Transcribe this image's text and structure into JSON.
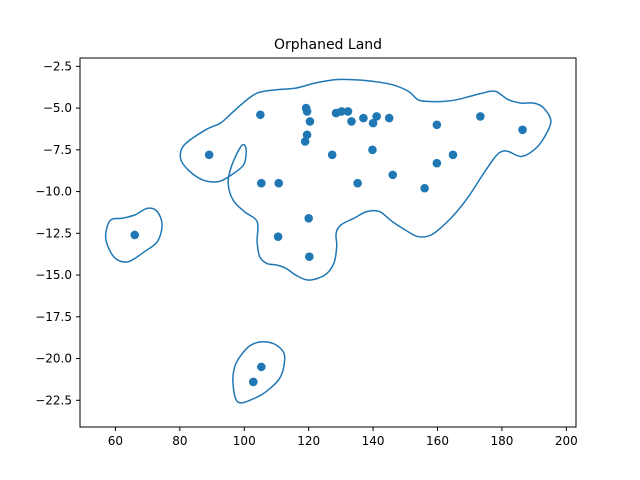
{
  "chart_data": {
    "type": "scatter",
    "title": "Orphaned Land",
    "xlabel": "",
    "ylabel": "",
    "xlim": [
      49,
      203
    ],
    "ylim": [
      -24.1,
      -2.0
    ],
    "x_ticks": [
      60,
      80,
      100,
      120,
      140,
      160,
      180,
      200
    ],
    "y_ticks": [
      -2.5,
      -5.0,
      -7.5,
      -10.0,
      -12.5,
      -15.0,
      -17.5,
      -20.0,
      -22.5
    ],
    "grid": false,
    "legend": "none",
    "colors": {
      "points": "#1f77b4",
      "contours": "#1f77b4"
    },
    "points": [
      {
        "x": 66.0,
        "y": -12.6
      },
      {
        "x": 89.1,
        "y": -7.8
      },
      {
        "x": 105.0,
        "y": -5.4
      },
      {
        "x": 105.3,
        "y": -9.5
      },
      {
        "x": 110.7,
        "y": -9.5
      },
      {
        "x": 110.5,
        "y": -12.7
      },
      {
        "x": 119.2,
        "y": -5.0
      },
      {
        "x": 119.5,
        "y": -5.2
      },
      {
        "x": 120.4,
        "y": -5.8
      },
      {
        "x": 119.5,
        "y": -6.6
      },
      {
        "x": 118.9,
        "y": -7.0
      },
      {
        "x": 120.0,
        "y": -11.6
      },
      {
        "x": 120.2,
        "y": -13.9
      },
      {
        "x": 127.3,
        "y": -7.8
      },
      {
        "x": 128.5,
        "y": -5.3
      },
      {
        "x": 130.2,
        "y": -5.2
      },
      {
        "x": 132.2,
        "y": -5.2
      },
      {
        "x": 133.3,
        "y": -5.8
      },
      {
        "x": 135.2,
        "y": -9.5
      },
      {
        "x": 137.0,
        "y": -5.6
      },
      {
        "x": 139.8,
        "y": -7.5
      },
      {
        "x": 140.0,
        "y": -5.9
      },
      {
        "x": 141.1,
        "y": -5.5
      },
      {
        "x": 145.0,
        "y": -5.6
      },
      {
        "x": 146.1,
        "y": -9.0
      },
      {
        "x": 156.0,
        "y": -9.8
      },
      {
        "x": 159.8,
        "y": -6.0
      },
      {
        "x": 159.8,
        "y": -8.3
      },
      {
        "x": 164.8,
        "y": -7.8
      },
      {
        "x": 173.3,
        "y": -5.5
      },
      {
        "x": 186.4,
        "y": -6.3
      },
      {
        "x": 105.3,
        "y": -20.5
      },
      {
        "x": 102.8,
        "y": -21.4
      }
    ],
    "contours": [
      [
        [
          87.1,
          -9.3
        ],
        [
          82.6,
          -8.7
        ],
        [
          80.2,
          -8.0
        ],
        [
          81.4,
          -7.2
        ],
        [
          88.0,
          -6.3
        ],
        [
          92.6,
          -5.9
        ],
        [
          96.1,
          -5.3
        ],
        [
          99.6,
          -4.7
        ],
        [
          104.0,
          -4.1
        ],
        [
          110.0,
          -3.9
        ],
        [
          116.0,
          -3.8
        ],
        [
          122.0,
          -3.5
        ],
        [
          128.0,
          -3.3
        ],
        [
          134.0,
          -3.3
        ],
        [
          140.0,
          -3.4
        ],
        [
          146.0,
          -3.6
        ],
        [
          151.0,
          -4.0
        ],
        [
          153.9,
          -4.5
        ],
        [
          157.0,
          -4.6
        ],
        [
          162.0,
          -4.6
        ],
        [
          166.0,
          -4.5
        ],
        [
          170.0,
          -4.3
        ],
        [
          174.0,
          -4.1
        ],
        [
          178.0,
          -4.0
        ],
        [
          182.0,
          -4.5
        ],
        [
          186.0,
          -4.7
        ],
        [
          190.0,
          -4.7
        ],
        [
          193.0,
          -5.0
        ],
        [
          195.2,
          -5.8
        ],
        [
          193.0,
          -6.8
        ],
        [
          190.0,
          -7.5
        ],
        [
          186.0,
          -7.9
        ],
        [
          182.0,
          -7.6
        ],
        [
          180.0,
          -7.6
        ],
        [
          178.0,
          -7.9
        ],
        [
          174.0,
          -9.0
        ],
        [
          170.0,
          -10.2
        ],
        [
          166.0,
          -11.2
        ],
        [
          162.0,
          -12.0
        ],
        [
          158.0,
          -12.6
        ],
        [
          154.0,
          -12.7
        ],
        [
          150.0,
          -12.3
        ],
        [
          146.0,
          -11.8
        ],
        [
          142.0,
          -11.2
        ],
        [
          138.0,
          -11.2
        ],
        [
          134.0,
          -11.6
        ],
        [
          130.0,
          -12.0
        ],
        [
          128.5,
          -12.5
        ],
        [
          128.7,
          -13.3
        ],
        [
          127.8,
          -14.3
        ],
        [
          125.0,
          -15.0
        ],
        [
          120.0,
          -15.3
        ],
        [
          116.0,
          -15.0
        ],
        [
          113.0,
          -14.6
        ],
        [
          110.0,
          -14.4
        ],
        [
          107.0,
          -14.3
        ],
        [
          104.8,
          -13.9
        ],
        [
          104.0,
          -13.0
        ],
        [
          104.0,
          -11.8
        ],
        [
          100.0,
          -11.2
        ],
        [
          96.5,
          -10.5
        ],
        [
          95.0,
          -9.5
        ],
        [
          96.0,
          -8.5
        ],
        [
          98.6,
          -7.4
        ],
        [
          100.0,
          -7.2
        ],
        [
          100.6,
          -7.6
        ],
        [
          99.8,
          -8.4
        ],
        [
          96.0,
          -9.0
        ],
        [
          92.0,
          -9.4
        ],
        [
          87.1,
          -9.3
        ]
      ],
      [
        [
          60.0,
          -14.0
        ],
        [
          57.5,
          -13.2
        ],
        [
          57.0,
          -12.5
        ],
        [
          58.5,
          -11.7
        ],
        [
          62.0,
          -11.6
        ],
        [
          66.0,
          -11.4
        ],
        [
          70.0,
          -11.0
        ],
        [
          73.0,
          -11.2
        ],
        [
          74.5,
          -12.0
        ],
        [
          73.0,
          -13.0
        ],
        [
          69.0,
          -13.6
        ],
        [
          64.0,
          -14.2
        ],
        [
          60.0,
          -14.0
        ]
      ],
      [
        [
          98.0,
          -22.6
        ],
        [
          96.5,
          -21.5
        ],
        [
          97.0,
          -20.5
        ],
        [
          99.0,
          -19.8
        ],
        [
          102.0,
          -19.2
        ],
        [
          106.0,
          -19.0
        ],
        [
          110.0,
          -19.2
        ],
        [
          112.5,
          -19.8
        ],
        [
          111.5,
          -21.0
        ],
        [
          108.0,
          -21.8
        ],
        [
          103.0,
          -22.4
        ],
        [
          98.0,
          -22.6
        ]
      ]
    ]
  }
}
